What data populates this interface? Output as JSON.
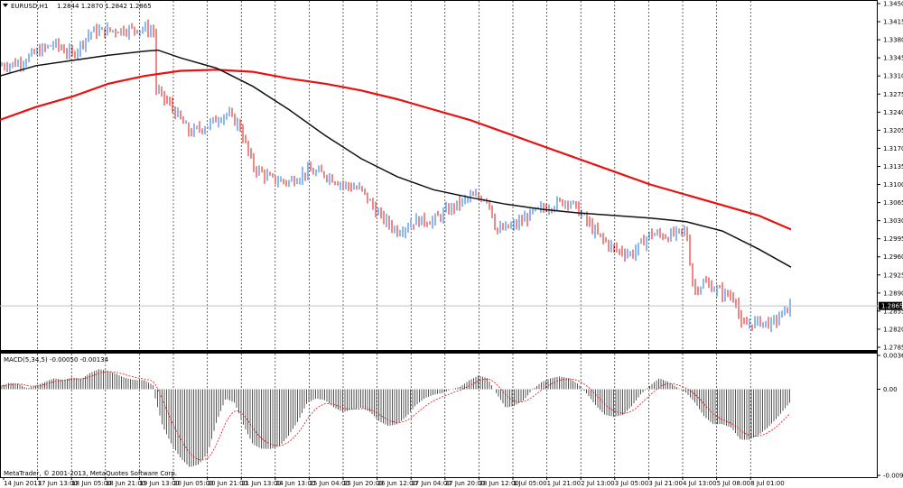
{
  "chart_data": [
    {
      "type": "candlestick",
      "symbol_label": "EURUSD,H1",
      "ohlc_label": "1.2844 1.2870 1.2842 1.2865",
      "current_price": "1.2865",
      "y_ticks": [
        "1.3450",
        "1.3415",
        "1.3380",
        "1.3345",
        "1.3310",
        "1.3275",
        "1.3240",
        "1.3205",
        "1.3170",
        "1.3135",
        "1.3100",
        "1.3065",
        "1.3030",
        "1.2995",
        "1.2960",
        "1.2925",
        "1.2890",
        "1.2855",
        "1.2820",
        "1.2785"
      ],
      "ylim": [
        1.2785,
        1.345
      ],
      "x_ticks": [
        "14 Jun 2013",
        "17 Jun 13:00",
        "18 Jun 05:00",
        "18 Jun 21:00",
        "19 Jun 13:00",
        "20 Jun 05:00",
        "20 Jun 21:00",
        "21 Jun 13:00",
        "24 Jun 13:00",
        "25 Jun 04:00",
        "25 Jun 20:00",
        "26 Jun 12:00",
        "27 Jun 04:00",
        "27 Jun 20:00",
        "28 Jun 12:00",
        "1 Jul 05:00",
        "1 Jul 21:00",
        "2 Jul 13:00",
        "3 Jul 05:00",
        "3 Jul 21:00",
        "4 Jul 13:00",
        "5 Jul 08:00",
        "8 Jul 01:00"
      ],
      "price_path": [
        [
          0,
          1.333
        ],
        [
          20,
          1.3335
        ],
        [
          40,
          1.3355
        ],
        [
          60,
          1.3372
        ],
        [
          80,
          1.335
        ],
        [
          100,
          1.3395
        ],
        [
          120,
          1.3398
        ],
        [
          140,
          1.34
        ],
        [
          160,
          1.3402
        ],
        [
          172,
          1.3395
        ],
        [
          172,
          1.3285
        ],
        [
          190,
          1.325
        ],
        [
          210,
          1.32
        ],
        [
          230,
          1.3215
        ],
        [
          250,
          1.3238
        ],
        [
          265,
          1.3215
        ],
        [
          280,
          1.3135
        ],
        [
          300,
          1.311
        ],
        [
          320,
          1.3105
        ],
        [
          340,
          1.3125
        ],
        [
          360,
          1.312
        ],
        [
          380,
          1.31
        ],
        [
          400,
          1.309
        ],
        [
          420,
          1.304
        ],
        [
          440,
          1.301
        ],
        [
          460,
          1.303
        ],
        [
          480,
          1.303
        ],
        [
          500,
          1.3055
        ],
        [
          520,
          1.3075
        ],
        [
          540,
          1.3075
        ],
        [
          550,
          1.301
        ],
        [
          570,
          1.302
        ],
        [
          590,
          1.3045
        ],
        [
          610,
          1.306
        ],
        [
          630,
          1.307
        ],
        [
          645,
          1.304
        ],
        [
          660,
          1.3005
        ],
        [
          680,
          1.2975
        ],
        [
          700,
          1.2965
        ],
        [
          720,
          1.3005
        ],
        [
          740,
          1.3
        ],
        [
          760,
          1.301
        ],
        [
          768,
          1.2895
        ],
        [
          780,
          1.291
        ],
        [
          800,
          1.289
        ],
        [
          815,
          1.288
        ],
        [
          820,
          1.2825
        ],
        [
          840,
          1.2835
        ],
        [
          855,
          1.283
        ],
        [
          875,
          1.2865
        ]
      ],
      "series": [
        {
          "name": "",
          "color": "#e81010",
          "values": [
            [
              0,
              1.3225
            ],
            [
              40,
              1.325
            ],
            [
              80,
              1.327
            ],
            [
              120,
              1.3295
            ],
            [
              160,
              1.331
            ],
            [
              200,
              1.332
            ],
            [
              240,
              1.3322
            ],
            [
              280,
              1.3318
            ],
            [
              320,
              1.3305
            ],
            [
              360,
              1.3295
            ],
            [
              400,
              1.3282
            ],
            [
              440,
              1.3265
            ],
            [
              480,
              1.3245
            ],
            [
              520,
              1.3225
            ],
            [
              560,
              1.32
            ],
            [
              600,
              1.3175
            ],
            [
              640,
              1.315
            ],
            [
              680,
              1.3125
            ],
            [
              720,
              1.31
            ],
            [
              760,
              1.308
            ],
            [
              800,
              1.306
            ],
            [
              840,
              1.304
            ],
            [
              876,
              1.3013
            ]
          ]
        },
        {
          "name": "",
          "color": "#111111",
          "values": [
            [
              0,
              1.331
            ],
            [
              40,
              1.333
            ],
            [
              80,
              1.334
            ],
            [
              120,
              1.335
            ],
            [
              160,
              1.3358
            ],
            [
              175,
              1.336
            ],
            [
              200,
              1.3345
            ],
            [
              240,
              1.3325
            ],
            [
              280,
              1.329
            ],
            [
              320,
              1.3245
            ],
            [
              360,
              1.3195
            ],
            [
              400,
              1.315
            ],
            [
              440,
              1.3115
            ],
            [
              480,
              1.309
            ],
            [
              520,
              1.3075
            ],
            [
              560,
              1.3062
            ],
            [
              600,
              1.3052
            ],
            [
              640,
              1.3045
            ],
            [
              680,
              1.304
            ],
            [
              720,
              1.3035
            ],
            [
              760,
              1.3028
            ],
            [
              800,
              1.301
            ],
            [
              840,
              1.2975
            ],
            [
              876,
              1.294
            ]
          ]
        }
      ]
    },
    {
      "type": "histogram",
      "title": "MACD(5,34,5) -0.00050 -0.00134",
      "y_ticks": [
        "0.00369",
        "0.00",
        "-0.00939"
      ],
      "ylim": [
        -0.00939,
        0.00369
      ],
      "values_path": [
        [
          0,
          0.0003
        ],
        [
          10,
          0.0007
        ],
        [
          20,
          0.0006
        ],
        [
          30,
          0.0001
        ],
        [
          40,
          0.0004
        ],
        [
          50,
          0.0008
        ],
        [
          60,
          0.0012
        ],
        [
          70,
          0.001
        ],
        [
          80,
          0.0013
        ],
        [
          90,
          0.0011
        ],
        [
          100,
          0.0018
        ],
        [
          110,
          0.0022
        ],
        [
          120,
          0.002
        ],
        [
          130,
          0.0016
        ],
        [
          140,
          0.0012
        ],
        [
          150,
          0.001
        ],
        [
          160,
          0.001
        ],
        [
          170,
          0.0004
        ],
        [
          172,
          -0.001
        ],
        [
          180,
          -0.004
        ],
        [
          190,
          -0.006
        ],
        [
          200,
          -0.0075
        ],
        [
          210,
          -0.0085
        ],
        [
          220,
          -0.0082
        ],
        [
          230,
          -0.007
        ],
        [
          240,
          -0.0035
        ],
        [
          250,
          -0.001
        ],
        [
          260,
          -0.0015
        ],
        [
          270,
          -0.004
        ],
        [
          280,
          -0.006
        ],
        [
          290,
          -0.0065
        ],
        [
          300,
          -0.0065
        ],
        [
          310,
          -0.0062
        ],
        [
          320,
          -0.005
        ],
        [
          330,
          -0.0035
        ],
        [
          340,
          -0.0015
        ],
        [
          350,
          -0.001
        ],
        [
          360,
          -0.0012
        ],
        [
          370,
          -0.002
        ],
        [
          380,
          -0.0025
        ],
        [
          390,
          -0.0022
        ],
        [
          400,
          -0.002
        ],
        [
          410,
          -0.0025
        ],
        [
          420,
          -0.0035
        ],
        [
          430,
          -0.004
        ],
        [
          440,
          -0.0038
        ],
        [
          450,
          -0.003
        ],
        [
          460,
          -0.0018
        ],
        [
          470,
          -0.001
        ],
        [
          480,
          -0.0006
        ],
        [
          490,
          -0.0004
        ],
        [
          500,
          0.0
        ],
        [
          510,
          0.0003
        ],
        [
          520,
          0.001
        ],
        [
          530,
          0.0015
        ],
        [
          540,
          0.0012
        ],
        [
          550,
          -0.0005
        ],
        [
          560,
          -0.002
        ],
        [
          570,
          -0.0018
        ],
        [
          580,
          -0.0012
        ],
        [
          590,
          0.0
        ],
        [
          600,
          0.0008
        ],
        [
          610,
          0.0012
        ],
        [
          620,
          0.0014
        ],
        [
          630,
          0.0012
        ],
        [
          640,
          0.0006
        ],
        [
          650,
          -0.0005
        ],
        [
          660,
          -0.0018
        ],
        [
          670,
          -0.0028
        ],
        [
          680,
          -0.003
        ],
        [
          690,
          -0.0028
        ],
        [
          700,
          -0.0018
        ],
        [
          710,
          -0.0005
        ],
        [
          720,
          0.0004
        ],
        [
          730,
          0.0012
        ],
        [
          740,
          0.0008
        ],
        [
          750,
          0.0002
        ],
        [
          760,
          -0.0004
        ],
        [
          770,
          -0.0015
        ],
        [
          780,
          -0.003
        ],
        [
          790,
          -0.0038
        ],
        [
          800,
          -0.0038
        ],
        [
          810,
          -0.0042
        ],
        [
          820,
          -0.0055
        ],
        [
          830,
          -0.0055
        ],
        [
          840,
          -0.005
        ],
        [
          850,
          -0.0042
        ],
        [
          860,
          -0.0032
        ],
        [
          870,
          -0.002
        ],
        [
          876,
          -0.0013
        ]
      ]
    }
  ],
  "footer": {
    "copyright": "MetaTrader, © 2001-2013, MetaQuotes Software Corp."
  },
  "colors": {
    "bull_candle": "#1f6fe0",
    "bear_candle": "#e01010",
    "signal_line": "#e01010",
    "histogram": "#555555",
    "grid_separator": "#000000"
  }
}
